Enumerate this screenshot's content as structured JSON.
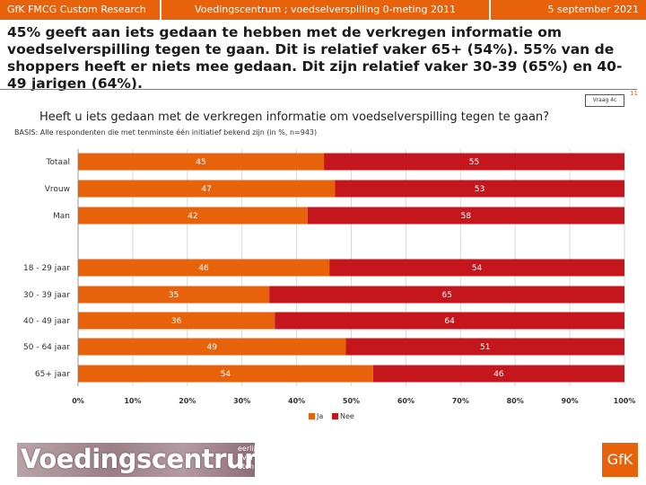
{
  "header": {
    "left": "GfK FMCG Custom Research",
    "center": "Voedingscentrum ; voedselverspilling 0-meting 2011",
    "right": "5 september 2021"
  },
  "headline": "45% geeft aan iets gedaan te hebben met de verkregen informatie om voedselverspilling tegen te gaan. Dit is relatief vaker 65+ (54%). 55% van de shoppers heeft er niets mee gedaan. Dit zijn relatief vaker 30-39 (65%) en 40-49 jarigen (64%).",
  "page_number": "11",
  "vraag": "Vraag 4c",
  "question": "Heeft u iets gedaan met de verkregen informatie om voedselverspilling tegen te gaan?",
  "basis": "BASIS: Alle respondenten die met tenminste één initiatief bekend zijn (in %, n=943)",
  "colors": {
    "orange": "#e8620c",
    "red": "#c4161c"
  },
  "chart_data": {
    "type": "bar",
    "orientation": "horizontal",
    "stacked": true,
    "categories": [
      "Totaal",
      "Vrouw",
      "Man",
      "18 - 29 jaar",
      "30 - 39 jaar",
      "40 - 49 jaar",
      "50 - 64 jaar",
      "65+ jaar"
    ],
    "series": [
      {
        "name": "Ja",
        "values": [
          45,
          47,
          42,
          46,
          35,
          36,
          49,
          54
        ]
      },
      {
        "name": "Nee",
        "values": [
          55,
          53,
          58,
          54,
          65,
          64,
          51,
          46
        ]
      }
    ],
    "xlim": [
      0,
      100
    ],
    "xticks": [
      "0%",
      "10%",
      "20%",
      "30%",
      "40%",
      "50%",
      "60%",
      "70%",
      "80%",
      "90%",
      "100%"
    ],
    "legend": "bottom-center",
    "grid": true
  },
  "footer": {
    "logo_text": "Voedingscentrum",
    "tagline": "eerlijk over eten",
    "brand": "GfK"
  }
}
